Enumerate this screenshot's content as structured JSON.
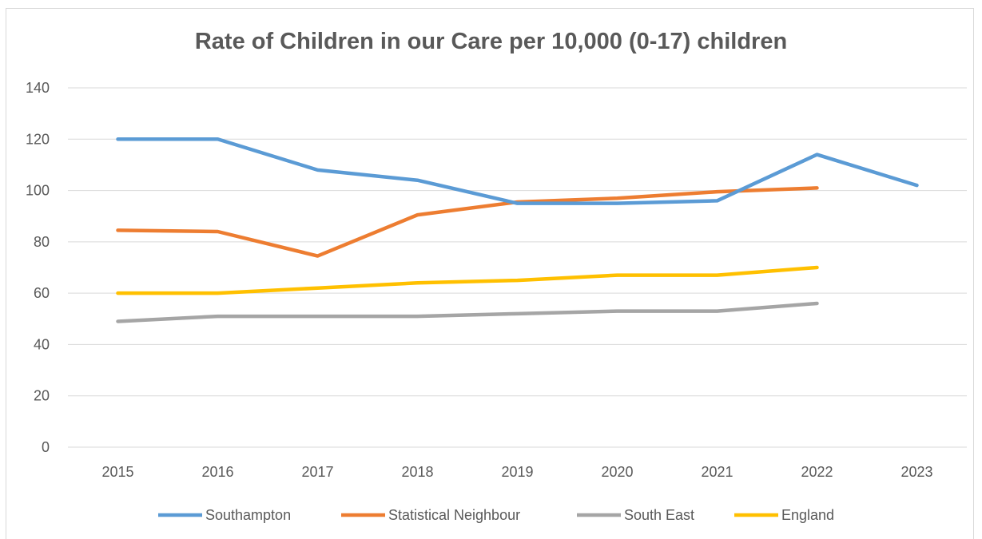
{
  "chart_data": {
    "type": "line",
    "title": "Rate of Children in our Care per 10,000 (0-17) children",
    "xlabel": "",
    "ylabel": "",
    "categories": [
      "2015",
      "2016",
      "2017",
      "2018",
      "2019",
      "2020",
      "2021",
      "2022",
      "2023"
    ],
    "ylim": [
      0,
      140
    ],
    "yticks": [
      0,
      20,
      40,
      60,
      80,
      100,
      120,
      140
    ],
    "grid": true,
    "legend_position": "bottom",
    "series": [
      {
        "name": "Southampton",
        "color": "#5b9bd5",
        "values": [
          120,
          120,
          108,
          104,
          95,
          95,
          96,
          114,
          102
        ]
      },
      {
        "name": "Statistical Neighbour",
        "color": "#ed7d31",
        "values": [
          84.5,
          84,
          74.5,
          90.5,
          95.5,
          97,
          99.5,
          101,
          null
        ]
      },
      {
        "name": "South East",
        "color": "#a5a5a5",
        "values": [
          49,
          51,
          51,
          51,
          52,
          53,
          53,
          56,
          null
        ]
      },
      {
        "name": "England",
        "color": "#ffc000",
        "values": [
          60,
          60,
          62,
          64,
          65,
          67,
          67,
          70,
          null
        ]
      }
    ]
  }
}
